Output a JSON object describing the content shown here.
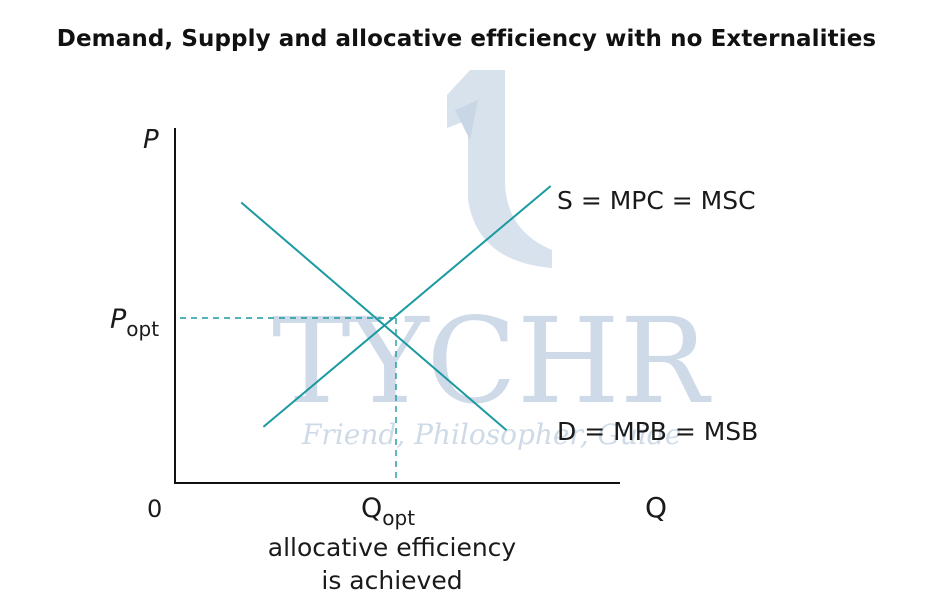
{
  "title": "Demand, Supply and allocative efficiency with no Externalities",
  "watermark": {
    "brand": "TYCHR",
    "tagline": "Friend, Philosopher, Guide",
    "color": "#c9d7e6"
  },
  "colors": {
    "curve": "#1a9aa0",
    "axis": "#111111",
    "guide": "#1a9aa0"
  },
  "chart_data": {
    "type": "line",
    "xlabel": "Q",
    "ylabel": "P",
    "origin_label": "0",
    "x_marker": {
      "label": "Q",
      "subscript": "opt"
    },
    "y_marker": {
      "label": "P",
      "subscript": "opt"
    },
    "annotation": [
      "allocative efficiency",
      "is achieved"
    ],
    "equilibrium": {
      "q": 0.5,
      "p": 0.5
    },
    "series": [
      {
        "name": "S = MPC = MSC",
        "points": [
          [
            0.2,
            0.17
          ],
          [
            0.85,
            0.9
          ]
        ]
      },
      {
        "name": "D = MPB = MSB",
        "points": [
          [
            0.15,
            0.85
          ],
          [
            0.75,
            0.16
          ]
        ]
      }
    ],
    "grid": false
  }
}
